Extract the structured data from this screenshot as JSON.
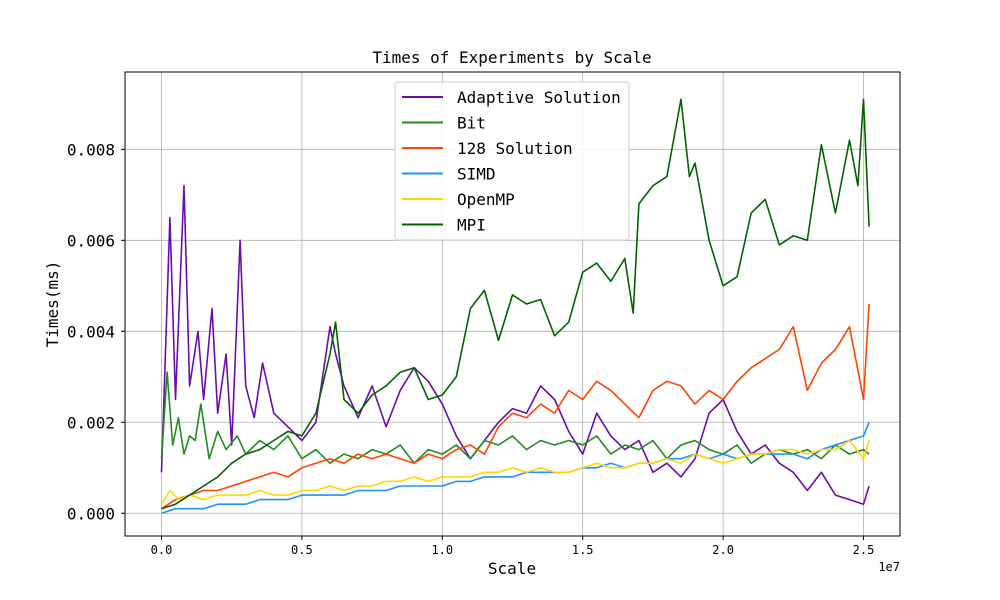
{
  "chart_data": {
    "type": "line",
    "title": "Times of Experiments by Scale",
    "xlabel": "Scale",
    "ylabel": "Times(ms)",
    "x_offset_label": "1e7",
    "xlim": [
      -0.13,
      2.63
    ],
    "ylim": [
      -0.0005,
      0.0097
    ],
    "x_ticks": [
      0.0,
      0.5,
      1.0,
      1.5,
      2.0,
      2.5
    ],
    "x_tick_labels": [
      "0.0",
      "0.5",
      "1.0",
      "1.5",
      "2.0",
      "2.5"
    ],
    "y_ticks": [
      0.0,
      0.002,
      0.004,
      0.006,
      0.008
    ],
    "y_tick_labels": [
      "0.000",
      "0.002",
      "0.004",
      "0.006",
      "0.008"
    ],
    "grid": true,
    "legend_position": "top-center",
    "series": [
      {
        "name": "Adaptive Solution",
        "color": "#6a0dad",
        "x": [
          0.0,
          0.03,
          0.05,
          0.08,
          0.1,
          0.13,
          0.15,
          0.18,
          0.2,
          0.23,
          0.25,
          0.28,
          0.3,
          0.33,
          0.36,
          0.4,
          0.45,
          0.5,
          0.55,
          0.6,
          0.62,
          0.65,
          0.7,
          0.75,
          0.8,
          0.85,
          0.9,
          0.95,
          1.0,
          1.05,
          1.1,
          1.15,
          1.2,
          1.25,
          1.3,
          1.35,
          1.4,
          1.45,
          1.5,
          1.55,
          1.6,
          1.65,
          1.7,
          1.75,
          1.8,
          1.85,
          1.9,
          1.95,
          2.0,
          2.05,
          2.1,
          2.15,
          2.2,
          2.25,
          2.3,
          2.35,
          2.4,
          2.45,
          2.5,
          2.52
        ],
        "values": [
          0.0009,
          0.0065,
          0.0025,
          0.0072,
          0.0028,
          0.004,
          0.0025,
          0.0045,
          0.0022,
          0.0035,
          0.0015,
          0.006,
          0.0028,
          0.0021,
          0.0033,
          0.0022,
          0.0019,
          0.0016,
          0.002,
          0.0041,
          0.0035,
          0.0028,
          0.0021,
          0.0028,
          0.0019,
          0.0027,
          0.0032,
          0.0029,
          0.0024,
          0.0017,
          0.0012,
          0.0016,
          0.002,
          0.0023,
          0.0022,
          0.0028,
          0.0025,
          0.0018,
          0.0013,
          0.0022,
          0.0017,
          0.0014,
          0.0016,
          0.0009,
          0.0011,
          0.0008,
          0.0012,
          0.0022,
          0.0025,
          0.0018,
          0.0013,
          0.0015,
          0.0011,
          0.0009,
          0.0005,
          0.0009,
          0.0004,
          0.0003,
          0.0002,
          0.0006
        ]
      },
      {
        "name": "Bit",
        "color": "#228b22",
        "x": [
          0.0,
          0.02,
          0.04,
          0.06,
          0.08,
          0.1,
          0.12,
          0.14,
          0.17,
          0.2,
          0.23,
          0.27,
          0.3,
          0.35,
          0.4,
          0.45,
          0.5,
          0.55,
          0.6,
          0.65,
          0.7,
          0.75,
          0.8,
          0.85,
          0.9,
          0.95,
          1.0,
          1.05,
          1.1,
          1.15,
          1.2,
          1.25,
          1.3,
          1.35,
          1.4,
          1.45,
          1.5,
          1.55,
          1.6,
          1.65,
          1.7,
          1.75,
          1.8,
          1.85,
          1.9,
          1.95,
          2.0,
          2.05,
          2.1,
          2.15,
          2.2,
          2.25,
          2.3,
          2.35,
          2.4,
          2.45,
          2.5,
          2.52
        ],
        "values": [
          0.0012,
          0.0031,
          0.0015,
          0.0021,
          0.0013,
          0.0017,
          0.0016,
          0.0024,
          0.0012,
          0.0018,
          0.0014,
          0.0017,
          0.0013,
          0.0016,
          0.0014,
          0.0017,
          0.0012,
          0.0014,
          0.0011,
          0.0013,
          0.0012,
          0.0014,
          0.0013,
          0.0015,
          0.0011,
          0.0014,
          0.0013,
          0.0015,
          0.0012,
          0.0016,
          0.0015,
          0.0017,
          0.0014,
          0.0016,
          0.0015,
          0.0016,
          0.0015,
          0.0017,
          0.0013,
          0.0015,
          0.0014,
          0.0016,
          0.0012,
          0.0015,
          0.0016,
          0.0014,
          0.0013,
          0.0015,
          0.0011,
          0.0013,
          0.0014,
          0.0013,
          0.0014,
          0.0012,
          0.0015,
          0.0013,
          0.0014,
          0.0013
        ]
      },
      {
        "name": "128 Solution",
        "color": "#ff4500",
        "x": [
          0.0,
          0.05,
          0.1,
          0.15,
          0.2,
          0.25,
          0.3,
          0.35,
          0.4,
          0.45,
          0.5,
          0.55,
          0.6,
          0.65,
          0.7,
          0.75,
          0.8,
          0.85,
          0.9,
          0.95,
          1.0,
          1.05,
          1.1,
          1.15,
          1.2,
          1.25,
          1.3,
          1.35,
          1.4,
          1.45,
          1.5,
          1.55,
          1.6,
          1.65,
          1.7,
          1.75,
          1.8,
          1.85,
          1.9,
          1.95,
          2.0,
          2.05,
          2.1,
          2.15,
          2.2,
          2.25,
          2.3,
          2.35,
          2.4,
          2.45,
          2.5,
          2.52
        ],
        "values": [
          0.0001,
          0.0003,
          0.0004,
          0.0005,
          0.0005,
          0.0006,
          0.0007,
          0.0008,
          0.0009,
          0.0008,
          0.001,
          0.0011,
          0.0012,
          0.0011,
          0.0013,
          0.0012,
          0.0013,
          0.0012,
          0.0011,
          0.0013,
          0.0012,
          0.0014,
          0.0015,
          0.0013,
          0.0019,
          0.0022,
          0.0021,
          0.0024,
          0.0022,
          0.0027,
          0.0025,
          0.0029,
          0.0027,
          0.0024,
          0.0021,
          0.0027,
          0.0029,
          0.0028,
          0.0024,
          0.0027,
          0.0025,
          0.0029,
          0.0032,
          0.0034,
          0.0036,
          0.0041,
          0.0027,
          0.0033,
          0.0036,
          0.0041,
          0.0025,
          0.0046
        ]
      },
      {
        "name": "SIMD",
        "color": "#1e90ff",
        "x": [
          0.0,
          0.05,
          0.1,
          0.15,
          0.2,
          0.25,
          0.3,
          0.35,
          0.4,
          0.45,
          0.5,
          0.55,
          0.6,
          0.65,
          0.7,
          0.75,
          0.8,
          0.85,
          0.9,
          0.95,
          1.0,
          1.05,
          1.1,
          1.15,
          1.2,
          1.25,
          1.3,
          1.35,
          1.4,
          1.45,
          1.5,
          1.55,
          1.6,
          1.65,
          1.7,
          1.75,
          1.8,
          1.85,
          1.9,
          1.95,
          2.0,
          2.05,
          2.1,
          2.15,
          2.2,
          2.25,
          2.3,
          2.35,
          2.4,
          2.45,
          2.5,
          2.52
        ],
        "values": [
          0.0,
          0.0001,
          0.0001,
          0.0001,
          0.0002,
          0.0002,
          0.0002,
          0.0003,
          0.0003,
          0.0003,
          0.0004,
          0.0004,
          0.0004,
          0.0004,
          0.0005,
          0.0005,
          0.0005,
          0.0006,
          0.0006,
          0.0006,
          0.0006,
          0.0007,
          0.0007,
          0.0008,
          0.0008,
          0.0008,
          0.0009,
          0.0009,
          0.0009,
          0.0009,
          0.001,
          0.001,
          0.0011,
          0.001,
          0.0011,
          0.0011,
          0.0012,
          0.0012,
          0.0013,
          0.0012,
          0.0013,
          0.0012,
          0.0013,
          0.0013,
          0.0013,
          0.0013,
          0.0012,
          0.0014,
          0.0015,
          0.0016,
          0.0017,
          0.002
        ]
      },
      {
        "name": "OpenMP",
        "color": "#ffd700",
        "x": [
          0.0,
          0.03,
          0.06,
          0.1,
          0.15,
          0.2,
          0.25,
          0.3,
          0.35,
          0.4,
          0.45,
          0.5,
          0.55,
          0.6,
          0.65,
          0.7,
          0.75,
          0.8,
          0.85,
          0.9,
          0.95,
          1.0,
          1.05,
          1.1,
          1.15,
          1.2,
          1.25,
          1.3,
          1.35,
          1.4,
          1.45,
          1.5,
          1.55,
          1.6,
          1.65,
          1.7,
          1.75,
          1.8,
          1.85,
          1.9,
          1.95,
          2.0,
          2.05,
          2.1,
          2.15,
          2.2,
          2.25,
          2.3,
          2.35,
          2.4,
          2.45,
          2.5,
          2.52
        ],
        "values": [
          0.0002,
          0.0005,
          0.0003,
          0.0004,
          0.0003,
          0.0004,
          0.0004,
          0.0004,
          0.0005,
          0.0004,
          0.0004,
          0.0005,
          0.0005,
          0.0006,
          0.0005,
          0.0006,
          0.0006,
          0.0007,
          0.0007,
          0.0008,
          0.0007,
          0.0008,
          0.0008,
          0.0008,
          0.0009,
          0.0009,
          0.001,
          0.0009,
          0.001,
          0.0009,
          0.0009,
          0.001,
          0.0011,
          0.001,
          0.001,
          0.0011,
          0.0011,
          0.0012,
          0.0011,
          0.0013,
          0.0012,
          0.0011,
          0.0012,
          0.0013,
          0.0013,
          0.0014,
          0.0014,
          0.0013,
          0.0014,
          0.0014,
          0.0016,
          0.0012,
          0.0016
        ]
      },
      {
        "name": "MPI",
        "color": "#006400",
        "x": [
          0.0,
          0.05,
          0.1,
          0.15,
          0.2,
          0.25,
          0.3,
          0.35,
          0.4,
          0.45,
          0.5,
          0.55,
          0.6,
          0.62,
          0.65,
          0.7,
          0.75,
          0.8,
          0.85,
          0.9,
          0.95,
          1.0,
          1.05,
          1.1,
          1.15,
          1.2,
          1.25,
          1.3,
          1.35,
          1.4,
          1.45,
          1.5,
          1.55,
          1.6,
          1.65,
          1.68,
          1.7,
          1.75,
          1.8,
          1.85,
          1.88,
          1.9,
          1.95,
          2.0,
          2.05,
          2.1,
          2.15,
          2.2,
          2.25,
          2.3,
          2.35,
          2.4,
          2.45,
          2.48,
          2.5,
          2.52
        ],
        "values": [
          0.0001,
          0.0002,
          0.0004,
          0.0006,
          0.0008,
          0.0011,
          0.0013,
          0.0014,
          0.0016,
          0.0018,
          0.0017,
          0.0022,
          0.0035,
          0.0042,
          0.0025,
          0.0022,
          0.0026,
          0.0028,
          0.0031,
          0.0032,
          0.0025,
          0.0026,
          0.003,
          0.0045,
          0.0049,
          0.0038,
          0.0048,
          0.0046,
          0.0047,
          0.0039,
          0.0042,
          0.0053,
          0.0055,
          0.0051,
          0.0056,
          0.0044,
          0.0068,
          0.0072,
          0.0074,
          0.0091,
          0.0074,
          0.0077,
          0.006,
          0.005,
          0.0052,
          0.0066,
          0.0069,
          0.0059,
          0.0061,
          0.006,
          0.0081,
          0.0066,
          0.0082,
          0.0072,
          0.0091,
          0.0063
        ]
      }
    ]
  }
}
